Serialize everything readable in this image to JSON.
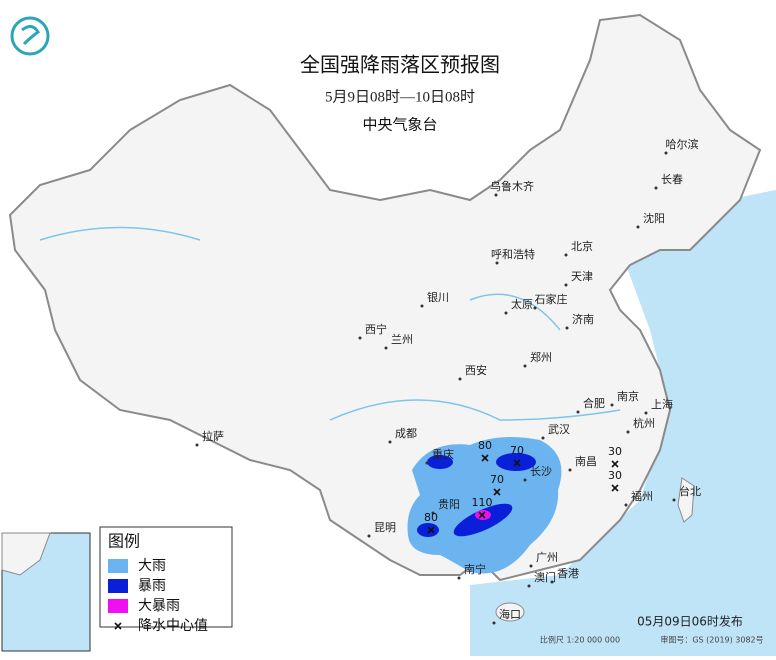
{
  "header": {
    "title": "全国强降雨落区预报图",
    "subtitle": "5月9日08时—10日08时",
    "agency": "中央气象台"
  },
  "cities": [
    "哈尔滨",
    "长春",
    "乌鲁木齐",
    "沈阳",
    "呼和浩特",
    "北京",
    "天津",
    "银川",
    "太原",
    "石家庄",
    "济南",
    "西宁",
    "兰州",
    "郑州",
    "西安",
    "合肥",
    "南京",
    "上海",
    "成都",
    "武汉",
    "杭州",
    "重庆",
    "长沙",
    "南昌",
    "拉萨",
    "贵阳",
    "福州",
    "台北",
    "昆明",
    "南宁",
    "广州",
    "澳门",
    "香港",
    "海口"
  ],
  "rain_centers": [
    {
      "value": 80
    },
    {
      "value": 70
    },
    {
      "value": 70
    },
    {
      "value": 110
    },
    {
      "value": 80
    },
    {
      "value": 30
    },
    {
      "value": 30
    }
  ],
  "legend": {
    "title": "图例",
    "items": [
      {
        "label": "大雨",
        "color": "#6cb4f0"
      },
      {
        "label": "暴雨",
        "color": "#0a1fd8"
      },
      {
        "label": "大暴雨",
        "color": "#f00ff0"
      },
      {
        "label": "降水中心值"
      }
    ]
  },
  "footer": {
    "release": "05月09日06时发布",
    "scale": "比例尺 1:20 000 000",
    "approval": "审图号：GS (2019) 3082号"
  }
}
